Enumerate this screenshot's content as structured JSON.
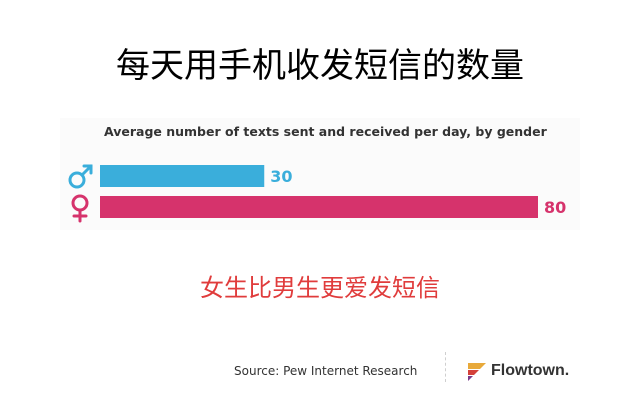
{
  "heading": "每天用手机收发短信的数量",
  "caption": "女生比男生更爱发短信",
  "source": "Source: Pew Internet Research",
  "brand": "Flowtown.",
  "chart_data": {
    "type": "bar",
    "orientation": "horizontal",
    "title": "Average number of texts sent and received per day, by gender",
    "categories": [
      "male",
      "female"
    ],
    "category_icons": [
      "male-symbol-icon",
      "female-symbol-icon"
    ],
    "values": [
      30,
      80
    ],
    "data_labels": [
      "30",
      "80"
    ],
    "xlim": [
      0,
      80
    ],
    "grid": false,
    "colors": [
      "#3aaedb",
      "#d6336c"
    ]
  }
}
